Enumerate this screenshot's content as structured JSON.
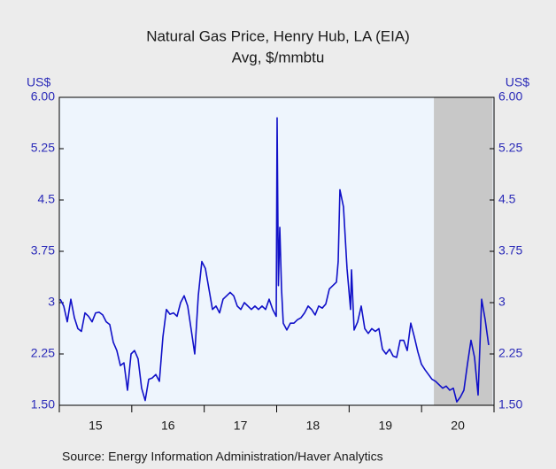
{
  "chart_data": {
    "type": "line",
    "title": "Natural Gas Price, Henry Hub, LA (EIA)",
    "subtitle": "Avg, $/mmbtu",
    "y_label": "US$",
    "y2_label": "US$",
    "source": "Source:  Energy Information Administration/Haver Analytics",
    "xlim": [
      15,
      21
    ],
    "xticks": [
      {
        "value": 15.5,
        "label": "15"
      },
      {
        "value": 16.5,
        "label": "16"
      },
      {
        "value": 17.5,
        "label": "17"
      },
      {
        "value": 18.5,
        "label": "18"
      },
      {
        "value": 19.5,
        "label": "19"
      },
      {
        "value": 20.5,
        "label": "20"
      }
    ],
    "ylim": [
      1.5,
      6
    ],
    "yticks": [
      {
        "value": 1.5,
        "label": "1.50"
      },
      2.25,
      3,
      3.75,
      4.5,
      5.25,
      {
        "value": 6,
        "label": "6.00"
      }
    ],
    "y2lim": [
      1.5,
      6
    ],
    "y2ticks": [
      {
        "value": 1.5,
        "label": "1.50"
      },
      2.25,
      3,
      3.75,
      4.5,
      5.25,
      {
        "value": 6,
        "label": "6.00"
      }
    ],
    "shaded_range": [
      20.17,
      20.98
    ],
    "shade_color": "#c8c8c8",
    "plot_background": "#eef5fd",
    "x": [
      15.012,
      15.061,
      15.11,
      15.159,
      15.208,
      15.256,
      15.305,
      15.354,
      15.403,
      15.452,
      15.501,
      15.55,
      15.599,
      15.647,
      15.696,
      15.745,
      15.794,
      15.843,
      15.892,
      15.941,
      15.99,
      16.038,
      16.087,
      16.136,
      16.185,
      16.234,
      16.283,
      16.332,
      16.381,
      16.43,
      16.478,
      16.527,
      16.576,
      16.625,
      16.674,
      16.723,
      16.772,
      16.821,
      16.869,
      16.918,
      16.967,
      17.016,
      17.065,
      17.114,
      17.163,
      17.212,
      17.26,
      17.309,
      17.358,
      17.407,
      17.456,
      17.505,
      17.554,
      17.603,
      17.651,
      17.7,
      17.749,
      17.798,
      17.847,
      17.896,
      17.945,
      17.994,
      18.006,
      18.024,
      18.043,
      18.067,
      18.091,
      18.14,
      18.189,
      18.238,
      18.287,
      18.336,
      18.385,
      18.434,
      18.482,
      18.531,
      18.58,
      18.629,
      18.678,
      18.727,
      18.776,
      18.825,
      18.849,
      18.873,
      18.922,
      18.971,
      19.02,
      19.033,
      19.069,
      19.118,
      19.167,
      19.216,
      19.264,
      19.313,
      19.362,
      19.411,
      19.46,
      19.509,
      19.558,
      19.607,
      19.656,
      19.704,
      19.753,
      19.802,
      19.851,
      19.9,
      19.949,
      19.998,
      20.047,
      20.095,
      20.144,
      20.193,
      20.242,
      20.291,
      20.34,
      20.389,
      20.438,
      20.486,
      20.535,
      20.584,
      20.633,
      20.682,
      20.731,
      20.78,
      20.829,
      20.878,
      20.926
    ],
    "series": [
      {
        "name": "Natural Gas Price",
        "color": "#1010c8",
        "values": [
          3.05,
          2.95,
          2.72,
          3.05,
          2.78,
          2.62,
          2.58,
          2.85,
          2.8,
          2.72,
          2.85,
          2.86,
          2.82,
          2.72,
          2.68,
          2.42,
          2.3,
          2.08,
          2.12,
          1.72,
          2.25,
          2.3,
          2.18,
          1.75,
          1.57,
          1.88,
          1.9,
          1.95,
          1.85,
          2.5,
          2.9,
          2.83,
          2.85,
          2.8,
          3.0,
          3.1,
          2.95,
          2.6,
          2.25,
          3.1,
          3.6,
          3.5,
          3.2,
          2.9,
          2.95,
          2.85,
          3.05,
          3.1,
          3.15,
          3.1,
          2.95,
          2.9,
          3.0,
          2.95,
          2.9,
          2.95,
          2.9,
          2.95,
          2.9,
          3.05,
          2.9,
          2.8,
          5.7,
          3.25,
          4.1,
          3.2,
          2.7,
          2.6,
          2.7,
          2.7,
          2.75,
          2.78,
          2.85,
          2.95,
          2.9,
          2.82,
          2.95,
          2.92,
          2.98,
          3.2,
          3.25,
          3.3,
          3.6,
          4.65,
          4.4,
          3.5,
          2.9,
          3.48,
          2.6,
          2.72,
          2.95,
          2.62,
          2.55,
          2.62,
          2.58,
          2.62,
          2.32,
          2.25,
          2.32,
          2.22,
          2.2,
          2.45,
          2.45,
          2.3,
          2.7,
          2.5,
          2.28,
          2.1,
          2.02,
          1.95,
          1.88,
          1.85,
          1.8,
          1.75,
          1.78,
          1.72,
          1.75,
          1.55,
          1.62,
          1.72,
          2.1,
          2.45,
          2.2,
          1.65,
          3.05,
          2.75,
          2.38
        ]
      }
    ]
  }
}
